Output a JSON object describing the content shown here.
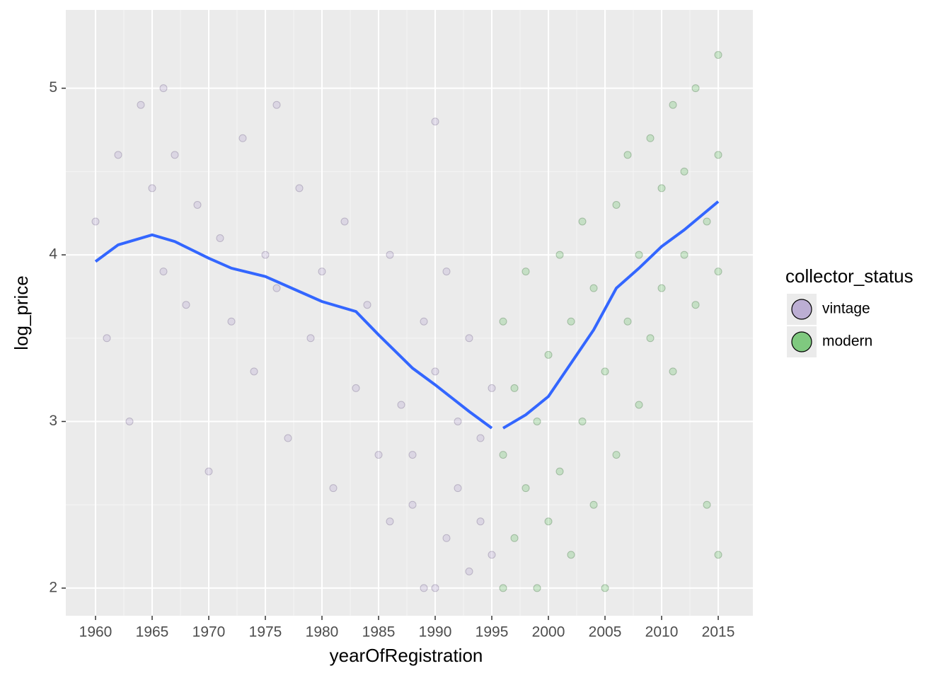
{
  "chart_data": {
    "type": "scatter",
    "xlabel": "yearOfRegistration",
    "ylabel": "log_price",
    "xlim": [
      1957.375,
      2018.06
    ],
    "ylim": [
      1.834,
      5.47
    ],
    "xticks": [
      1960,
      1965,
      1970,
      1975,
      1980,
      1985,
      1990,
      1995,
      2000,
      2005,
      2010,
      2015
    ],
    "yticks": [
      2,
      3,
      4,
      5
    ],
    "grid": true,
    "legend_title": "collector_status",
    "legend_position": "right",
    "series": [
      {
        "name": "vintage",
        "color": "#bcaed3",
        "stroke": "#6e5f85",
        "x": [
          1960,
          1961,
          1962,
          1963,
          1964,
          1965,
          1966,
          1967,
          1968,
          1969,
          1970,
          1971,
          1972,
          1973,
          1974,
          1975,
          1976,
          1977,
          1978,
          1979,
          1980,
          1981,
          1982,
          1983,
          1984,
          1985,
          1986,
          1987,
          1988,
          1989,
          1990,
          1990,
          1991,
          1991,
          1992,
          1992,
          1993,
          1993,
          1994,
          1994,
          1995,
          1995,
          1989,
          1988,
          1986,
          1966,
          1976,
          1990
        ],
        "values": [
          4.2,
          3.5,
          4.6,
          3.0,
          4.9,
          4.4,
          3.9,
          4.6,
          3.7,
          4.3,
          2.7,
          4.1,
          3.6,
          4.7,
          3.3,
          4.0,
          3.8,
          2.9,
          4.4,
          3.5,
          3.9,
          2.6,
          4.2,
          3.2,
          3.7,
          2.8,
          4.0,
          3.1,
          2.5,
          3.6,
          2.0,
          3.3,
          2.3,
          3.9,
          2.6,
          3.0,
          2.1,
          3.5,
          2.4,
          2.9,
          2.2,
          3.2,
          2.0,
          2.8,
          2.4,
          5.0,
          4.9,
          4.8
        ]
      },
      {
        "name": "modern",
        "color": "#7fc97f",
        "stroke": "#3a6e3a",
        "x": [
          1996,
          1996,
          1996,
          1997,
          1997,
          1998,
          1998,
          1999,
          1999,
          2000,
          2000,
          2001,
          2001,
          2002,
          2002,
          2003,
          2003,
          2004,
          2004,
          2005,
          2005,
          2006,
          2006,
          2007,
          2007,
          2008,
          2008,
          2009,
          2009,
          2010,
          2010,
          2011,
          2011,
          2012,
          2012,
          2013,
          2013,
          2014,
          2014,
          2015,
          2015,
          2015,
          2015
        ],
        "values": [
          2.0,
          2.8,
          3.6,
          2.3,
          3.2,
          2.6,
          3.9,
          2.0,
          3.0,
          2.4,
          3.4,
          2.7,
          4.0,
          2.2,
          3.6,
          3.0,
          4.2,
          2.5,
          3.8,
          2.0,
          3.3,
          2.8,
          4.3,
          3.6,
          4.6,
          3.1,
          4.0,
          3.5,
          4.7,
          3.8,
          4.4,
          3.3,
          4.9,
          4.0,
          4.5,
          3.7,
          5.0,
          4.2,
          2.5,
          4.6,
          2.2,
          3.9,
          5.2
        ]
      }
    ],
    "smooth": [
      {
        "color": "#3366ff",
        "x": [
          1960,
          1962,
          1965,
          1967,
          1970,
          1972,
          1975,
          1978,
          1980,
          1983,
          1985,
          1988,
          1990,
          1993,
          1995
        ],
        "values": [
          3.96,
          4.06,
          4.12,
          4.08,
          3.98,
          3.92,
          3.87,
          3.78,
          3.72,
          3.66,
          3.52,
          3.32,
          3.22,
          3.06,
          2.96
        ]
      },
      {
        "color": "#3366ff",
        "x": [
          1996,
          1998,
          2000,
          2002,
          2004,
          2006,
          2008,
          2010,
          2012,
          2015
        ],
        "values": [
          2.96,
          3.04,
          3.15,
          3.35,
          3.55,
          3.8,
          3.92,
          4.05,
          4.15,
          4.32
        ]
      }
    ]
  }
}
